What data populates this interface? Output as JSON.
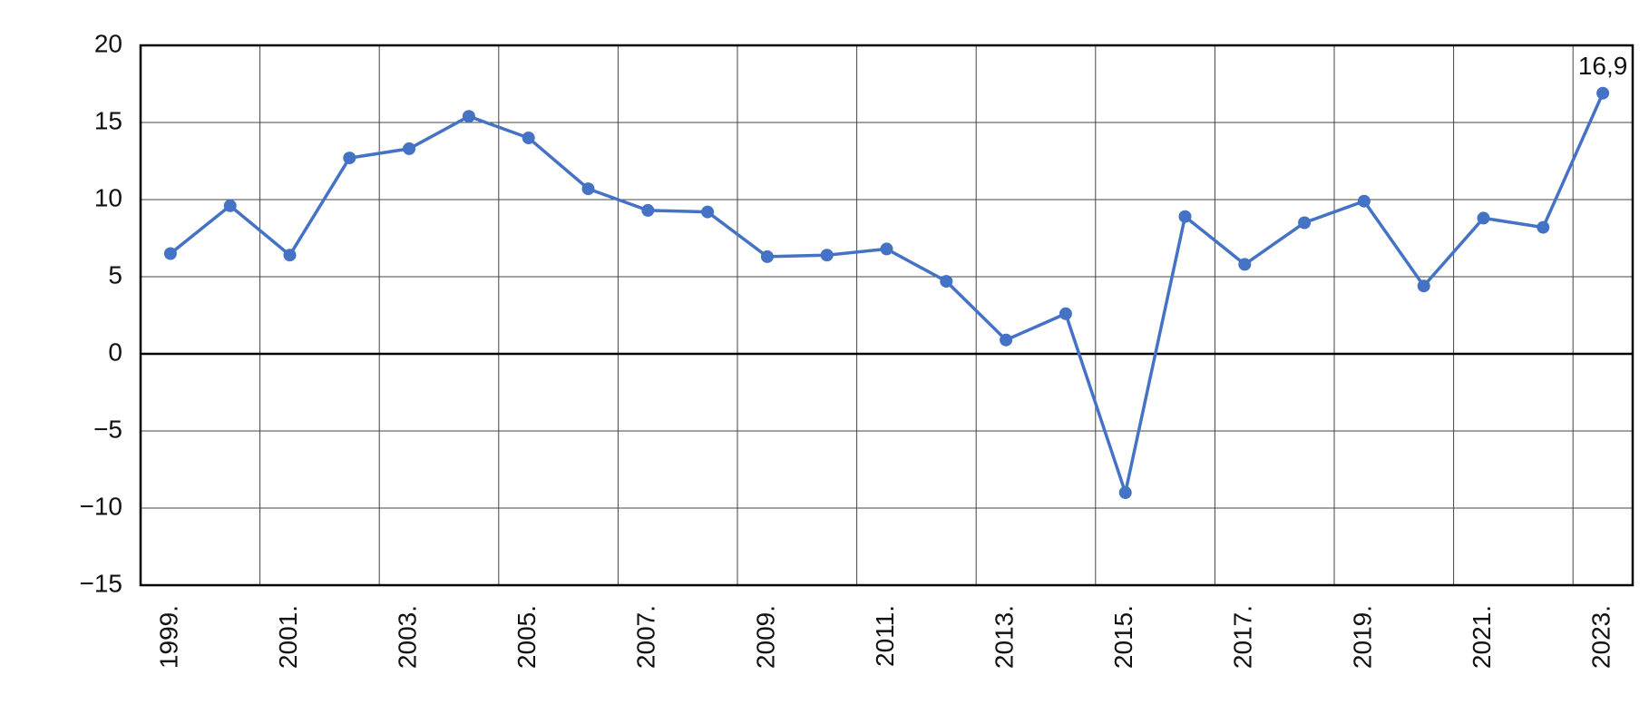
{
  "chart_data": {
    "type": "line",
    "categories": [
      "1999.",
      null,
      "2001.",
      null,
      "2003.",
      null,
      "2005.",
      null,
      "2007.",
      null,
      "2009.",
      null,
      "2011.",
      null,
      "2013.",
      null,
      "2015.",
      null,
      "2017.",
      null,
      "2019.",
      null,
      "2021.",
      null,
      "2023."
    ],
    "values": [
      6.5,
      9.6,
      6.4,
      12.7,
      13.3,
      15.4,
      14.0,
      10.7,
      9.3,
      9.2,
      6.3,
      6.4,
      6.8,
      4.7,
      0.9,
      2.6,
      -9.0,
      8.9,
      5.8,
      8.5,
      9.9,
      4.4,
      8.8,
      8.2,
      16.9
    ],
    "value_labels": [
      null,
      null,
      null,
      null,
      null,
      null,
      null,
      null,
      null,
      null,
      null,
      null,
      null,
      null,
      null,
      null,
      null,
      null,
      null,
      null,
      null,
      null,
      null,
      null,
      "16,9"
    ],
    "color": "#4472c4",
    "ylim": [
      -15,
      20
    ],
    "yticks": [
      {
        "value": -15,
        "label": "−15"
      },
      {
        "value": -10,
        "label": "−10"
      },
      {
        "value": -5,
        "label": "−5"
      },
      0,
      5,
      10,
      15,
      20
    ],
    "grid": true
  }
}
